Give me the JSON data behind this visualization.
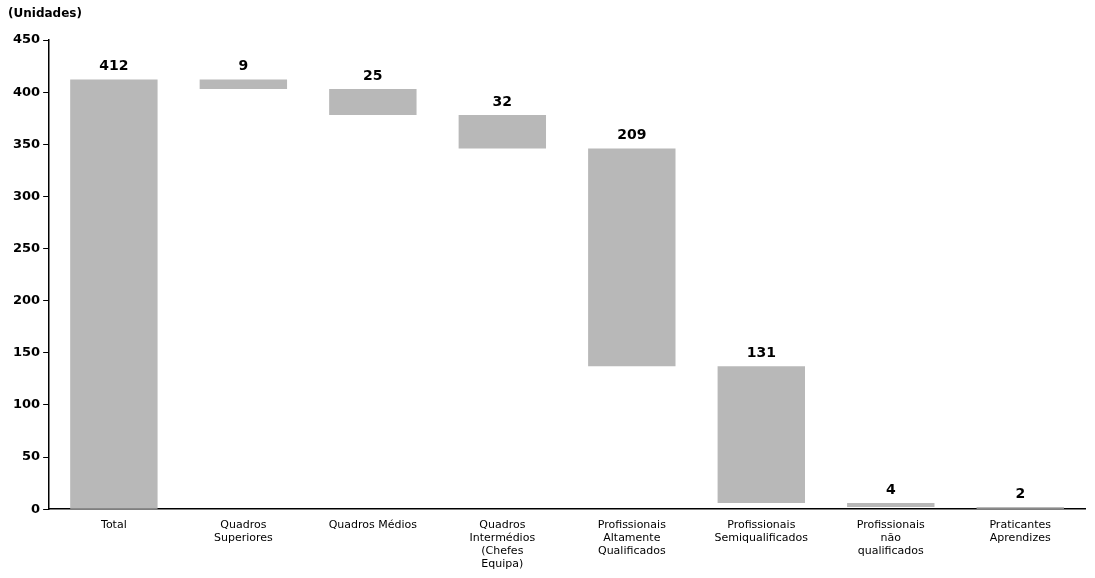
{
  "chart_data": {
    "type": "bar",
    "ylabel": "(Unidades)",
    "categories": [
      "Total",
      "Quadros Superiores",
      "Quadros Médios",
      "Quadros Intermédios (Chefes Equipa)",
      "Profissionais Altamente Qualificados",
      "Profissionais Semiqualificados",
      "Profissionais não qualificados",
      "Praticantes Aprendizes"
    ],
    "values": [
      412,
      9,
      25,
      32,
      209,
      131,
      4,
      2
    ],
    "base": [
      0,
      403,
      378,
      346,
      137,
      6,
      2,
      0
    ],
    "color": "#b8b8b8",
    "ylim": [
      0,
      450
    ],
    "yticks": [
      0,
      50,
      100,
      150,
      200,
      250,
      300,
      350,
      400,
      450
    ],
    "grid": false,
    "legend": false,
    "data_labels": true
  }
}
